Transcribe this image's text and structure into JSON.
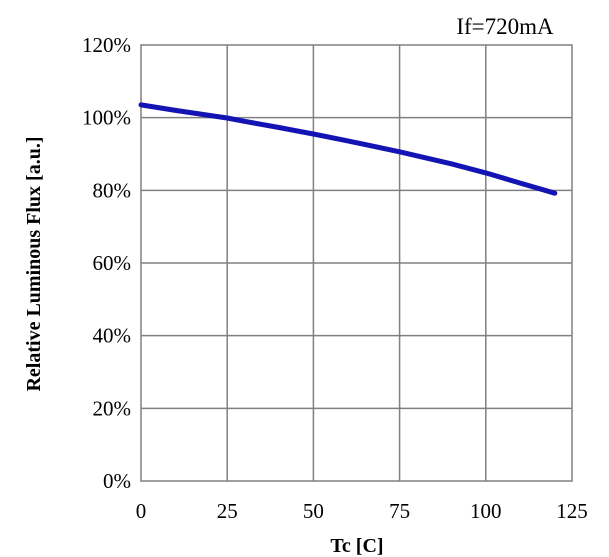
{
  "chart_data": {
    "type": "line",
    "title": "",
    "annotation": "If=720mA",
    "xlabel": "Tc [C]",
    "ylabel": "Relative Luminous Flux [a.u.]",
    "xlim": [
      0,
      125
    ],
    "ylim": [
      0,
      120
    ],
    "x_ticks": [
      0,
      25,
      50,
      75,
      100,
      125
    ],
    "x_tick_labels": [
      "0",
      "25",
      "50",
      "75",
      "100",
      "125"
    ],
    "y_ticks": [
      0,
      20,
      40,
      60,
      80,
      100,
      120
    ],
    "y_tick_labels": [
      "0%",
      "20%",
      "40%",
      "60%",
      "80%",
      "100%",
      "120%"
    ],
    "grid": true,
    "series": [
      {
        "color": "#1414b4",
        "x": [
          0,
          10,
          20,
          25,
          30,
          40,
          50,
          60,
          70,
          75,
          80,
          90,
          100,
          110,
          120
        ],
        "y": [
          103.5,
          102.0,
          100.6,
          99.9,
          99.0,
          97.3,
          95.5,
          93.6,
          91.6,
          90.6,
          89.5,
          87.3,
          84.8,
          82.0,
          79.2
        ]
      }
    ]
  }
}
